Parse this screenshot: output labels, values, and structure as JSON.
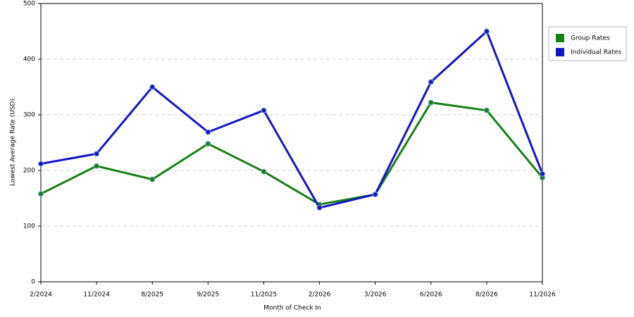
{
  "chart_data": {
    "type": "line",
    "x_label": "Month of Check In",
    "y_label": "Lowest Average Rate (USD)",
    "categories": [
      "2/2024",
      "11/2024",
      "8/2025",
      "9/2025",
      "11/2025",
      "2/2026",
      "3/2026",
      "6/2026",
      "8/2026",
      "11/2026"
    ],
    "series": [
      {
        "name": "Group Rates",
        "color": "#158015",
        "values": [
          158,
          208,
          184,
          248,
          198,
          139,
          157,
          322,
          308,
          187
        ]
      },
      {
        "name": "Individual Rates",
        "color": "#1515c8",
        "values": [
          212,
          230,
          350,
          269,
          308,
          133,
          157,
          359,
          450,
          194
        ]
      }
    ],
    "ylim": [
      0,
      500
    ],
    "yticks": [
      0,
      100,
      200,
      300,
      400,
      500
    ],
    "grid": true,
    "legend": "right"
  }
}
